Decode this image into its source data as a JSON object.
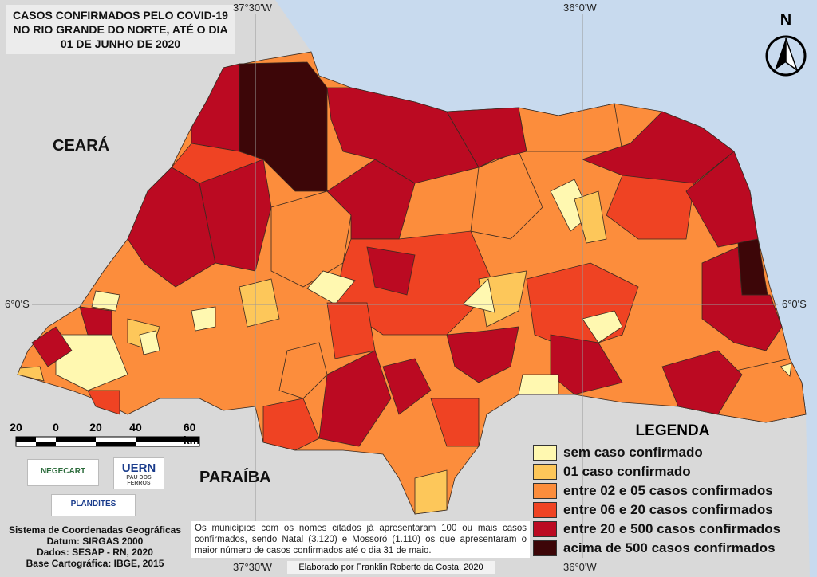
{
  "title": [
    "CASOS CONFIRMADOS PELO COVID-19",
    "NO RIO GRANDE DO NORTE, ATÉ O DIA",
    "01 DE JUNHO DE 2020"
  ],
  "coordinates": {
    "longitudes": [
      "37°30'W",
      "36°0'W"
    ],
    "latitude": "6°0'S"
  },
  "regions": {
    "west": "CEARÁ",
    "south": "PARAÍBA"
  },
  "north_arrow": "N",
  "scale_bar": [
    "20",
    "0",
    "20",
    "40",
    "60 km"
  ],
  "logos": {
    "negecart": "NEGECART",
    "uern": "UERN",
    "uern_sub": "PAU DOS FERROS",
    "plandites": "PLANDITES"
  },
  "legend": {
    "title": "LEGENDA",
    "items": [
      {
        "label": "sem caso confirmado",
        "color": "#fff8b0"
      },
      {
        "label": "01 caso confirmado",
        "color": "#fdc75a"
      },
      {
        "label": "entre 02 e 05 casos confirmados",
        "color": "#fc8d3c"
      },
      {
        "label": "entre 06 e 20 casos confirmados",
        "color": "#ef4323"
      },
      {
        "label": "entre 20 e 500 casos confirmados",
        "color": "#bb0a22"
      },
      {
        "label": "acima de 500 casos confirmados",
        "color": "#3d0608"
      }
    ]
  },
  "note": "Os municípios com os nomes citados já apresentaram 100 ou mais casos confirmados, sendo Natal (3.120) e Mossoró (1.110) os que apresentaram o maior número de casos confirmados até o dia 31 de maio.",
  "credits": [
    "Sistema de Coordenadas Geográficas",
    "Datum: SIRGAS 2000",
    "Dados: SESAP - RN, 2020",
    "Base Cartográfica: IBGE, 2015"
  ],
  "author": "Elaborado por Franklin Roberto da Costa, 2020"
}
